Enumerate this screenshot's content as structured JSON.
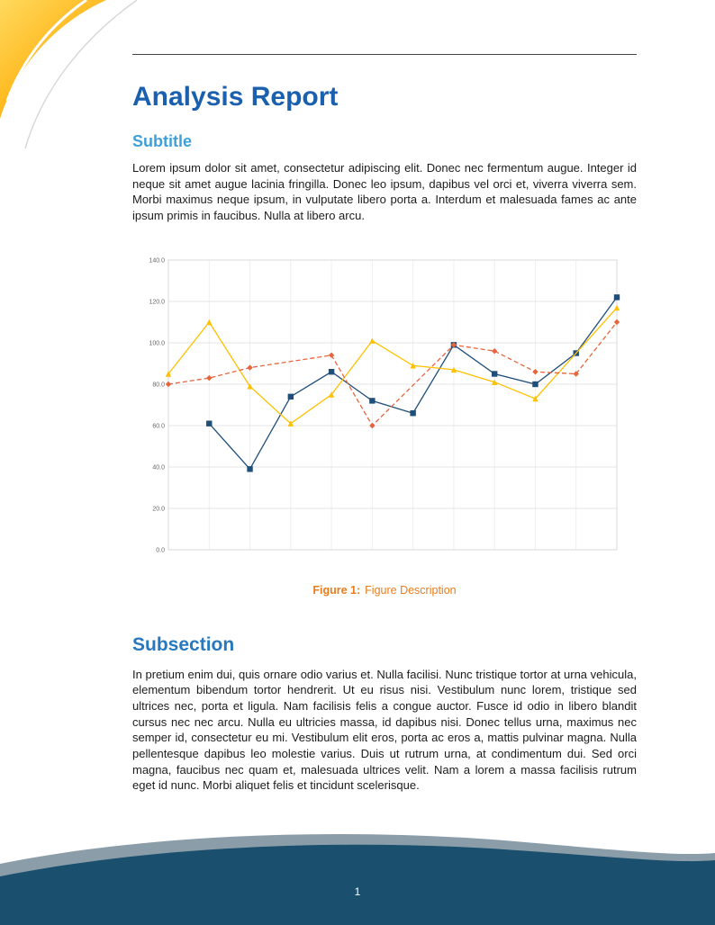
{
  "report": {
    "title": "Analysis Report",
    "subtitle_heading": "Subtitle",
    "intro_paragraph": "Lorem ipsum dolor sit amet, consectetur adipiscing elit. Donec nec fermentum augue. Integer id neque sit amet augue lacinia fringilla. Donec leo ipsum, dapibus vel orci et, viverra viverra sem. Morbi maximus neque ipsum, in vulputate libero porta a. Interdum et malesuada fames ac ante ipsum primis in faucibus. Nulla at libero arcu.",
    "subsection_heading": "Subsection",
    "subsection_paragraph": "In pretium enim dui, quis ornare odio varius et. Nulla facilisi. Nunc tristique tortor at urna vehicula, elementum bibendum tortor hendrerit. Ut eu risus nisi. Vestibulum nunc lorem, tristique sed ultrices nec, porta et ligula. Nam facilisis felis a congue auctor. Fusce id odio in libero blandit cursus nec nec arcu. Nulla eu ultricies massa, id dapibus nisi. Donec tellus urna, maximus nec semper id, consectetur eu mi. Vestibulum elit eros, porta ac eros a, mattis pulvinar magna. Nulla pellentesque dapibus leo molestie varius. Duis ut rutrum urna, at condimentum dui. Sed orci magna, faucibus nec quam et, malesuada ultrices velit. Nam a lorem a massa facilisis rutrum eget id nunc. Morbi aliquet felis et tincidunt scelerisque."
  },
  "figure": {
    "label": "Figure 1:",
    "description": "Figure Description"
  },
  "footer": {
    "page_number": "1"
  },
  "colors": {
    "title_blue": "#1B5FAF",
    "subtitle_blue": "#3FA0D9",
    "subsection_blue": "#2878BE",
    "caption_orange": "#E87D1E",
    "footer_navy": "#1A4F6E",
    "footer_band_gray": "#8B9DA9",
    "decoration_yellow": "#FFD34D",
    "decoration_orange": "#F59B00"
  },
  "chart_data": {
    "type": "line",
    "title": "",
    "xlabel": "",
    "ylabel": "",
    "x": [
      0,
      1,
      2,
      3,
      4,
      5,
      6,
      7,
      8,
      9,
      10,
      11
    ],
    "ylim": [
      0,
      140
    ],
    "ytick_step": 20,
    "ytick_labels": [
      "0.0",
      "20.0",
      "40.0",
      "60.0",
      "80.0",
      "100.0",
      "120.0",
      "140.0"
    ],
    "grid": true,
    "legend": "none",
    "series": [
      {
        "name": "blue-solid-squares",
        "color": "#1F4E79",
        "marker": "square",
        "dash": "solid",
        "values": [
          null,
          61,
          39,
          74,
          86,
          72,
          66,
          99,
          85,
          80,
          95,
          122
        ]
      },
      {
        "name": "yellow-solid-triangles",
        "color": "#FFC000",
        "marker": "triangle",
        "dash": "solid",
        "values": [
          85,
          110,
          79,
          61,
          75,
          101,
          89,
          87,
          81,
          73,
          null,
          117
        ]
      },
      {
        "name": "red-dashed-diamonds",
        "color": "#E8643C",
        "marker": "diamond",
        "dash": "dashed",
        "values": [
          80,
          83,
          88,
          null,
          94,
          60,
          null,
          99,
          96,
          86,
          85,
          110
        ]
      }
    ]
  }
}
